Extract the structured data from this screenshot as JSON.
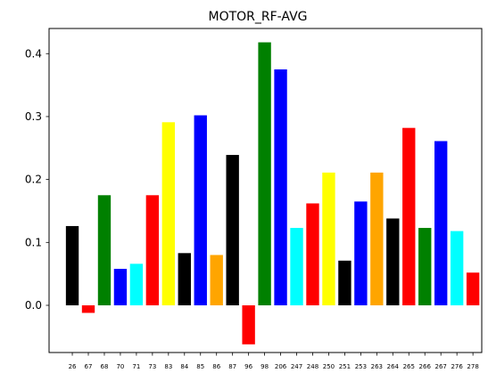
{
  "chart_data": {
    "type": "bar",
    "title": "MOTOR_RF-AVG",
    "xlabel": "",
    "ylabel": "",
    "ylim": [
      -0.075,
      0.44
    ],
    "yticks": [
      0.0,
      0.1,
      0.2,
      0.3,
      0.4
    ],
    "ytick_labels": [
      "0.0",
      "0.1",
      "0.2",
      "0.3",
      "0.4"
    ],
    "grid": false,
    "legend": false,
    "categories": [
      "26",
      "67",
      "68",
      "70",
      "71",
      "73",
      "83",
      "84",
      "85",
      "86",
      "87",
      "96",
      "98",
      "206",
      "247",
      "248",
      "250",
      "251",
      "253",
      "263",
      "264",
      "265",
      "266",
      "267",
      "276",
      "278"
    ],
    "values": [
      0.126,
      -0.012,
      0.175,
      0.058,
      0.066,
      0.175,
      0.291,
      0.083,
      0.302,
      0.08,
      0.239,
      -0.062,
      0.418,
      0.375,
      0.123,
      0.162,
      0.211,
      0.071,
      0.165,
      0.211,
      0.138,
      0.282,
      0.123,
      0.261,
      0.118,
      0.052
    ],
    "colors": [
      "#000000",
      "#ff0000",
      "#008000",
      "#0000ff",
      "#00ffff",
      "#ff0000",
      "#ffff00",
      "#000000",
      "#0000ff",
      "#ffa500",
      "#000000",
      "#ff0000",
      "#008000",
      "#0000ff",
      "#00ffff",
      "#ff0000",
      "#ffff00",
      "#000000",
      "#0000ff",
      "#ffa500",
      "#000000",
      "#ff0000",
      "#008000",
      "#0000ff",
      "#00ffff",
      "#ff0000"
    ]
  }
}
